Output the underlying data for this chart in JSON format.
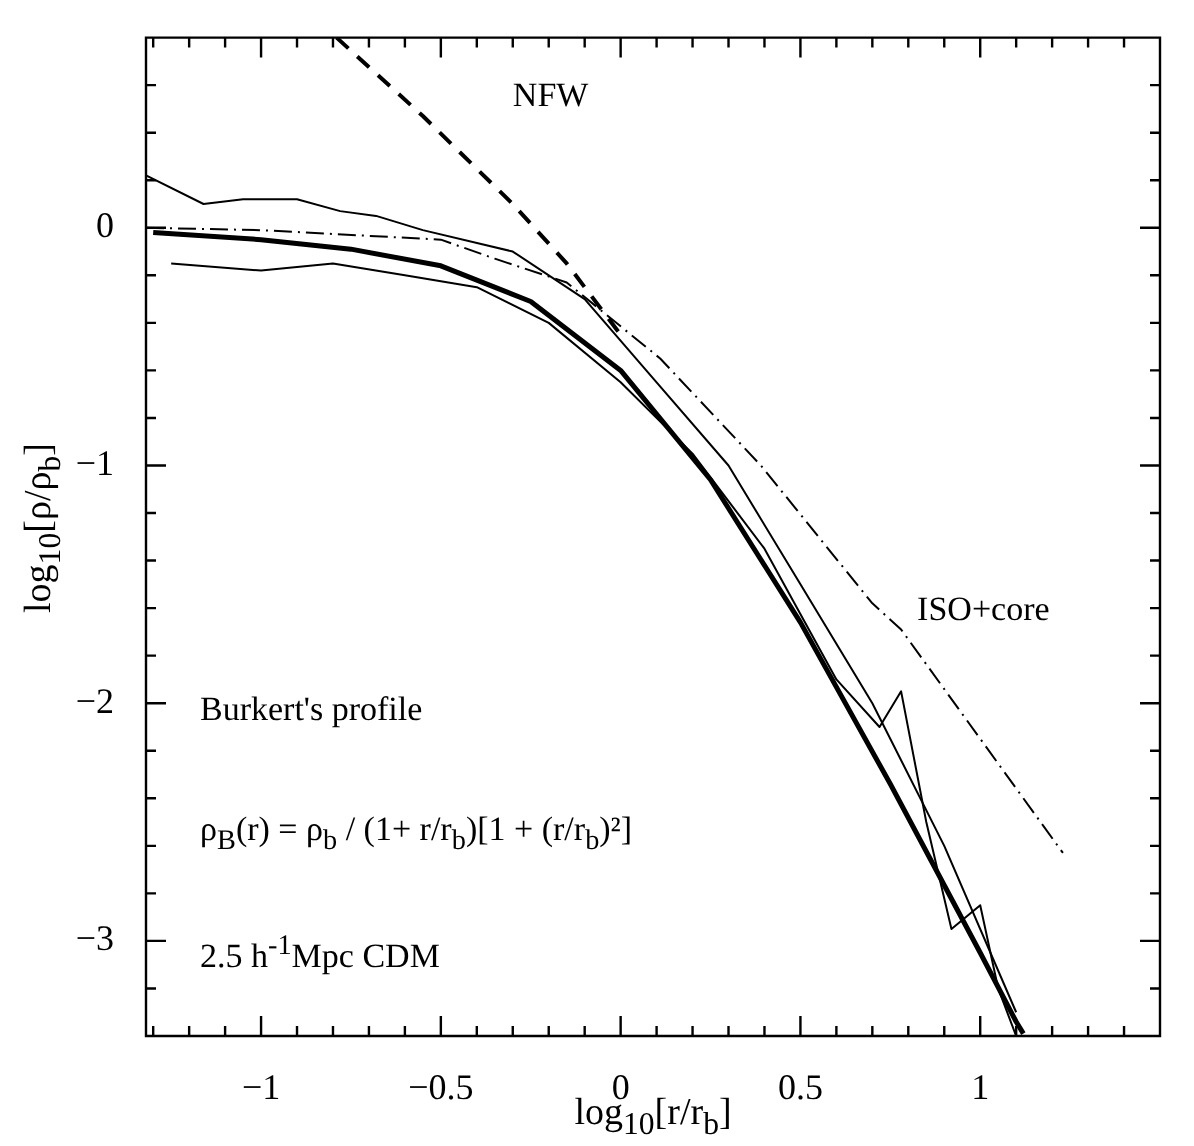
{
  "chart_data": {
    "type": "line",
    "xlabel": "log$_{10}$[r/r$_{b}$]",
    "ylabel": "log$_{10}$[ρ/ρ$_{b}$]",
    "xlim": [
      -1.32,
      1.5
    ],
    "ylim": [
      -3.4,
      0.8
    ],
    "xticks": [
      {
        "value": -1.3,
        "label": null
      },
      {
        "value": -1.2,
        "label": null
      },
      {
        "value": -1.1,
        "label": null
      },
      {
        "value": -1,
        "label": "−1"
      },
      {
        "value": -0.9,
        "label": null
      },
      {
        "value": -0.8,
        "label": null
      },
      {
        "value": -0.7,
        "label": null
      },
      {
        "value": -0.6,
        "label": null
      },
      {
        "value": -0.5,
        "label": "−0.5"
      },
      {
        "value": -0.4,
        "label": null
      },
      {
        "value": -0.3,
        "label": null
      },
      {
        "value": -0.2,
        "label": null
      },
      {
        "value": -0.1,
        "label": null
      },
      0,
      {
        "value": 0.1,
        "label": null
      },
      {
        "value": 0.2,
        "label": null
      },
      {
        "value": 0.3,
        "label": null
      },
      {
        "value": 0.4,
        "label": null
      },
      0.5,
      {
        "value": 0.6,
        "label": null
      },
      {
        "value": 0.7,
        "label": null
      },
      {
        "value": 0.8,
        "label": null
      },
      {
        "value": 0.9,
        "label": null
      },
      1,
      {
        "value": 1.1,
        "label": null
      },
      {
        "value": 1.2,
        "label": null
      },
      {
        "value": 1.3,
        "label": null
      },
      {
        "value": 1.4,
        "label": null
      }
    ],
    "yticks": [
      {
        "value": -3.2,
        "label": null
      },
      {
        "value": -3,
        "label": "−3"
      },
      {
        "value": -2.8,
        "label": null
      },
      {
        "value": -2.6,
        "label": null
      },
      {
        "value": -2.4,
        "label": null
      },
      {
        "value": -2.2,
        "label": null
      },
      {
        "value": -2,
        "label": "−2"
      },
      {
        "value": -1.8,
        "label": null
      },
      {
        "value": -1.6,
        "label": null
      },
      {
        "value": -1.4,
        "label": null
      },
      {
        "value": -1.2,
        "label": null
      },
      {
        "value": -1,
        "label": "−1"
      },
      {
        "value": -0.8,
        "label": null
      },
      {
        "value": -0.6,
        "label": null
      },
      {
        "value": -0.4,
        "label": null
      },
      {
        "value": -0.2,
        "label": null
      },
      0,
      {
        "value": 0.2,
        "label": null
      },
      {
        "value": 0.4,
        "label": null
      },
      {
        "value": 0.6,
        "label": null
      }
    ],
    "grid": false,
    "legend": false,
    "marker": "none",
    "series": [
      {
        "color": "#000000",
        "line_style": "solid",
        "x": [
          -1.3,
          -1,
          -0.75,
          -0.5,
          -0.25,
          0,
          0.25,
          0.5,
          0.75,
          1,
          1.1,
          1.12
        ],
        "values": [
          -0.02,
          -0.05,
          -0.09,
          -0.16,
          -0.31,
          -0.6,
          -1.06,
          -1.66,
          -2.34,
          -3.05,
          -3.34,
          -3.39
        ]
      },
      {
        "color": "#000000",
        "line_style": "dashed",
        "x": [
          -0.79,
          -0.55,
          -0.3,
          -0.15,
          0.0
        ],
        "values": [
          0.8,
          0.47,
          0.1,
          -0.15,
          -0.45
        ]
      },
      {
        "color": "#000000",
        "line_style": "dotted",
        "x": [
          -1.32,
          -1.0,
          -0.5,
          -0.35,
          -0.15,
          0.11,
          0.39,
          0.7,
          0.78,
          1.23
        ],
        "values": [
          0.0,
          -0.01,
          -0.05,
          -0.13,
          -0.23,
          -0.55,
          -1.0,
          -1.58,
          -1.69,
          -2.63
        ]
      },
      {
        "color": "#000000",
        "line_style": "solid",
        "x": [
          -1.32,
          -1.16,
          -1.05,
          -0.9,
          -0.78,
          -0.68,
          -0.55,
          -0.3,
          -0.1,
          0.1,
          0.3,
          0.5,
          0.7,
          0.9,
          1.1
        ],
        "values": [
          0.22,
          0.1,
          0.12,
          0.12,
          0.07,
          0.05,
          -0.01,
          -0.1,
          -0.3,
          -0.65,
          -1.0,
          -1.5,
          -2.0,
          -2.6,
          -3.3
        ]
      },
      {
        "color": "#000000",
        "line_style": "solid",
        "x": [
          -1.25,
          -1.0,
          -0.8,
          -0.6,
          -0.4,
          -0.2,
          0,
          0.2,
          0.4,
          0.6,
          0.72,
          0.78,
          0.85,
          0.92,
          1.0,
          1.05,
          1.1
        ],
        "values": [
          -0.15,
          -0.18,
          -0.15,
          -0.2,
          -0.25,
          -0.4,
          -0.65,
          -0.95,
          -1.35,
          -1.9,
          -2.1,
          -1.95,
          -2.5,
          -2.95,
          -2.85,
          -3.2,
          -3.4
        ]
      }
    ],
    "annotations": [
      {
        "text": "NFW",
        "x": -0.55,
        "y": 0.47
      },
      {
        "text": "ISO+core",
        "x": 0.78,
        "y": -1.69
      },
      "Burkert's profile",
      "ρ$_{B}$(r) = ρ$_{b}$ / (1+ r/r$_{b}$)[1 + (r/r$_{b}$)²]",
      "2.5 h$^{-1}$Mpc CDM"
    ]
  }
}
